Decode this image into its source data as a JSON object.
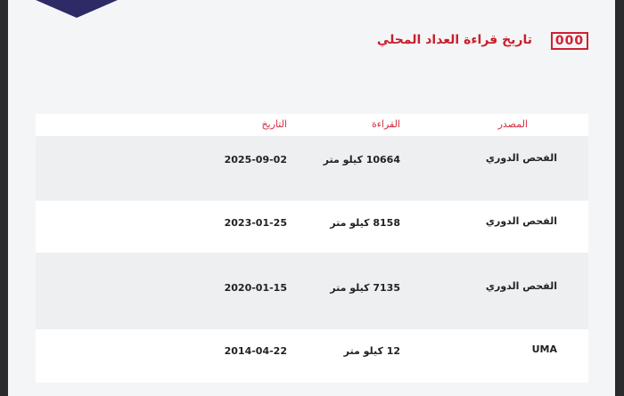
{
  "header": {
    "icon": "000",
    "title": "تاريخ قراءة العداد المحلي"
  },
  "table": {
    "columns": [
      "المصدر",
      "القراءة",
      "التاريخ"
    ],
    "rows": [
      [
        "الفحص الدوري",
        "10664 كيلو متر",
        "2025-09-02"
      ],
      [
        "الفحص الدوري",
        "8158 كيلو متر",
        "2023-01-25"
      ],
      [
        "الفحص الدوري",
        "7135 كيلو متر",
        "2020-01-15"
      ],
      [
        "UMA",
        "12 كيلو متر",
        "2014-04-22"
      ]
    ]
  }
}
